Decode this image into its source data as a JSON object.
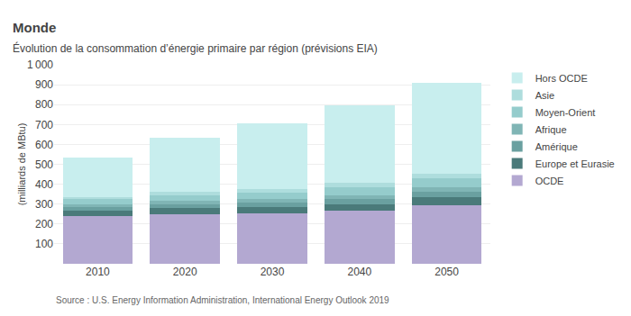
{
  "chart_data": {
    "type": "bar",
    "stacked": true,
    "title": "Monde",
    "subtitle": "Évolution de la consommation d’énergie primaire par région (prévisions EIA)",
    "ylabel": "(milliards de MBtu)",
    "annotations": [
      "Source : U.S. Energy Information Administration, International Energy Outlook 2019"
    ],
    "categories": [
      "2010",
      "2020",
      "2030",
      "2040",
      "2050"
    ],
    "series": [
      {
        "name": "OCDE",
        "color": "#b3a8d1",
        "values": [
          240,
          250,
          252,
          265,
          295
        ]
      },
      {
        "name": "Europe et Eurasie",
        "color": "#4a7a7a",
        "values": [
          28,
          30,
          32,
          35,
          38
        ]
      },
      {
        "name": "Amérique",
        "color": "#6aa0a0",
        "values": [
          18,
          20,
          22,
          24,
          27
        ]
      },
      {
        "name": "Afrique",
        "color": "#80b5b5",
        "values": [
          13,
          15,
          18,
          22,
          26
        ]
      },
      {
        "name": "Moyen-Orient",
        "color": "#95cccc",
        "values": [
          27,
          30,
          34,
          38,
          43
        ]
      },
      {
        "name": "Asie",
        "color": "#aedddd",
        "values": [
          10,
          15,
          18,
          22,
          25
        ]
      },
      {
        "name": "Hors OCDE",
        "color": "#c8eeee",
        "values": [
          199,
          275,
          329,
          392,
          456
        ]
      }
    ],
    "ylim": [
      0,
      1000
    ],
    "yticks": [
      {
        "value": 0,
        "label": null
      },
      100,
      200,
      300,
      400,
      500,
      600,
      700,
      800,
      900,
      {
        "value": 1000,
        "label": "1 000"
      }
    ],
    "grid": true,
    "legend": "right"
  }
}
